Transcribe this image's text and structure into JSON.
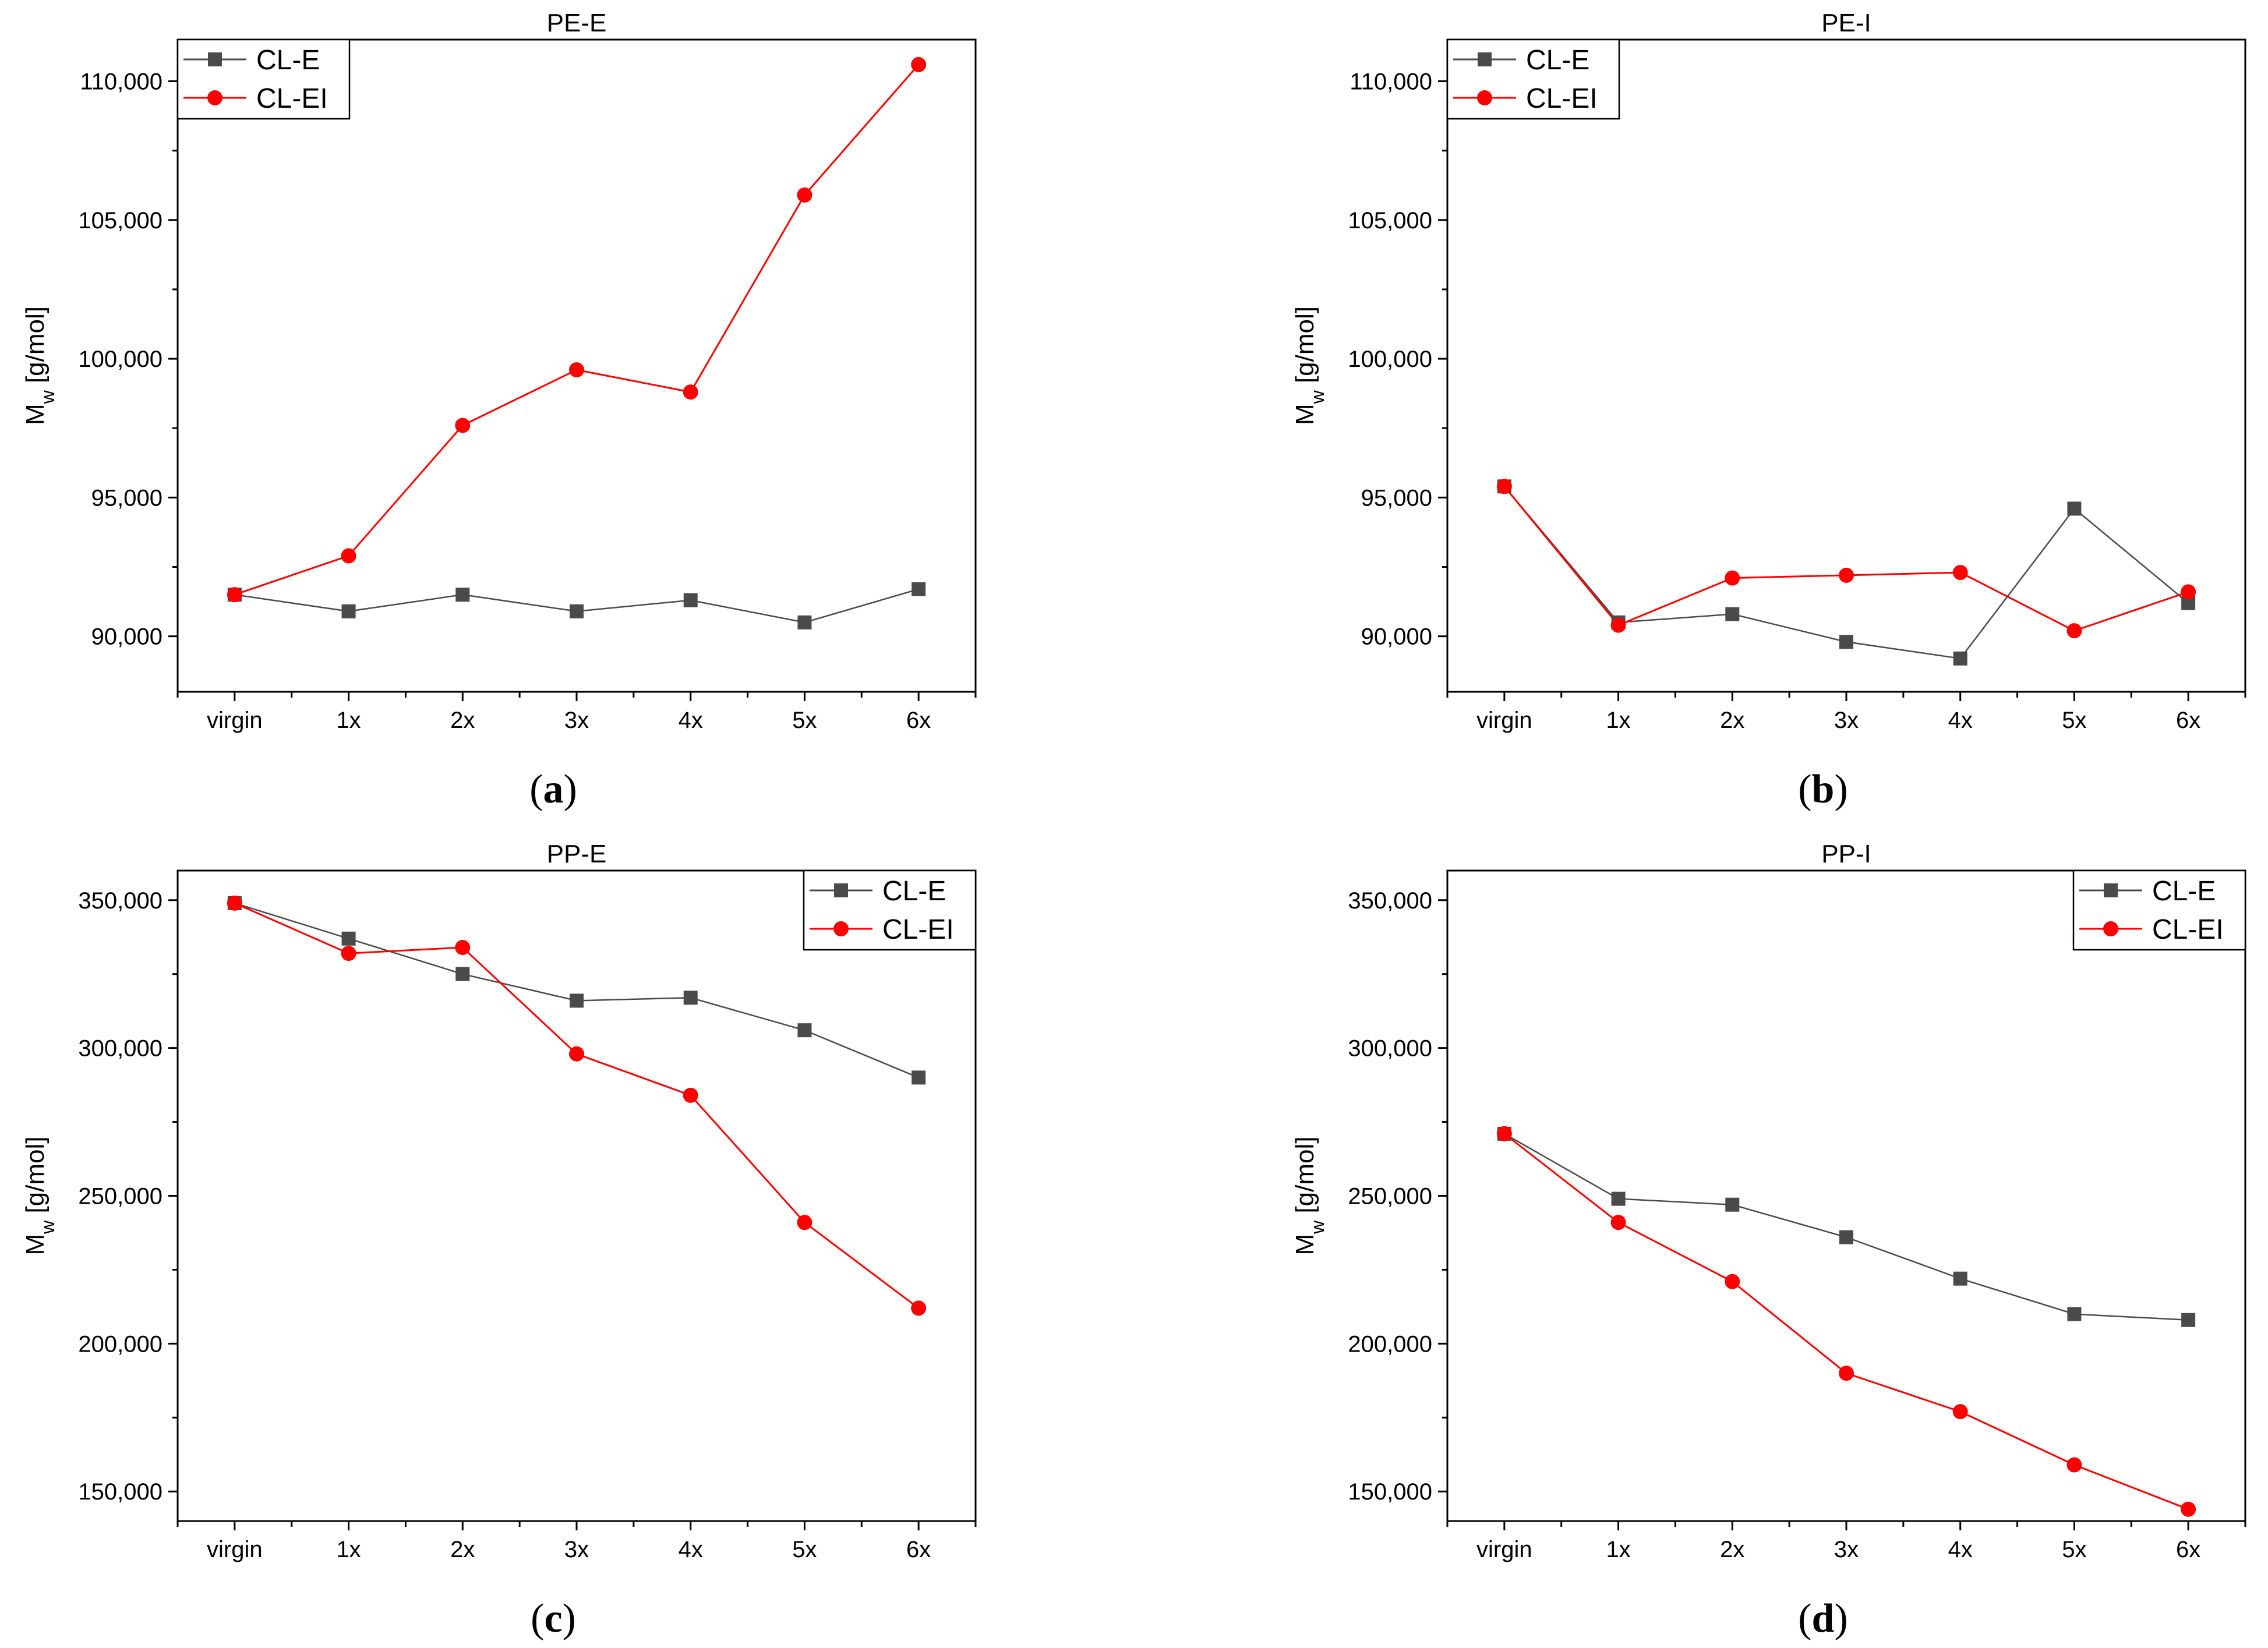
{
  "chart_data": [
    {
      "type": "line",
      "id": "a",
      "title": "PE-E",
      "caption": "a",
      "xlabel": "",
      "ylabel": "M",
      "ylabel_sub": "w",
      "ylabel_unit": " [g/mol]",
      "categories": [
        "virgin",
        "1x",
        "2x",
        "3x",
        "4x",
        "5x",
        "6x"
      ],
      "ylim": [
        88000,
        111500
      ],
      "yticks": [
        90000,
        95000,
        100000,
        105000,
        110000
      ],
      "ytick_labels": [
        "90,000",
        "95,000",
        "100,000",
        "105,000",
        "110,000"
      ],
      "legend_position": "top-left",
      "series": [
        {
          "name": "CL-E",
          "color": "#4a4a4a",
          "marker": "square",
          "values": [
            91500,
            90900,
            91500,
            90900,
            91300,
            90500,
            91700
          ]
        },
        {
          "name": "CL-EI",
          "color": "#ff0000",
          "marker": "circle",
          "values": [
            91500,
            92900,
            97600,
            99600,
            98800,
            105900,
            110600
          ]
        }
      ]
    },
    {
      "type": "line",
      "id": "b",
      "title": "PE-I",
      "caption": "b",
      "xlabel": "",
      "ylabel": "M",
      "ylabel_sub": "w",
      "ylabel_unit": " [g/mol]",
      "categories": [
        "virgin",
        "1x",
        "2x",
        "3x",
        "4x",
        "5x",
        "6x"
      ],
      "ylim": [
        88000,
        111500
      ],
      "yticks": [
        90000,
        95000,
        100000,
        105000,
        110000
      ],
      "ytick_labels": [
        "90,000",
        "95,000",
        "100,000",
        "105,000",
        "110,000"
      ],
      "legend_position": "top-left",
      "series": [
        {
          "name": "CL-E",
          "color": "#4a4a4a",
          "marker": "square",
          "values": [
            95400,
            90500,
            90800,
            89800,
            89200,
            94600,
            91200
          ]
        },
        {
          "name": "CL-EI",
          "color": "#ff0000",
          "marker": "circle",
          "values": [
            95400,
            90400,
            92100,
            92200,
            92300,
            90200,
            91600
          ]
        }
      ]
    },
    {
      "type": "line",
      "id": "c",
      "title": "PP-E",
      "caption": "c",
      "xlabel": "",
      "ylabel": "M",
      "ylabel_sub": "w",
      "ylabel_unit": " [g/mol]",
      "categories": [
        "virgin",
        "1x",
        "2x",
        "3x",
        "4x",
        "5x",
        "6x"
      ],
      "ylim": [
        140000,
        360000
      ],
      "yticks": [
        150000,
        200000,
        250000,
        300000,
        350000
      ],
      "ytick_labels": [
        "150,000",
        "200,000",
        "250,000",
        "300,000",
        "350,000"
      ],
      "legend_position": "top-right",
      "series": [
        {
          "name": "CL-E",
          "color": "#4a4a4a",
          "marker": "square",
          "values": [
            349000,
            337000,
            325000,
            316000,
            317000,
            306000,
            290000
          ]
        },
        {
          "name": "CL-EI",
          "color": "#ff0000",
          "marker": "circle",
          "values": [
            349000,
            332000,
            334000,
            298000,
            284000,
            241000,
            212000
          ]
        }
      ]
    },
    {
      "type": "line",
      "id": "d",
      "title": "PP-I",
      "caption": "d",
      "xlabel": "",
      "ylabel": "M",
      "ylabel_sub": "w",
      "ylabel_unit": " [g/mol]",
      "categories": [
        "virgin",
        "1x",
        "2x",
        "3x",
        "4x",
        "5x",
        "6x"
      ],
      "ylim": [
        140000,
        360000
      ],
      "yticks": [
        150000,
        200000,
        250000,
        300000,
        350000
      ],
      "ytick_labels": [
        "150,000",
        "200,000",
        "250,000",
        "300,000",
        "350,000"
      ],
      "legend_position": "top-right",
      "series": [
        {
          "name": "CL-E",
          "color": "#4a4a4a",
          "marker": "square",
          "values": [
            271000,
            249000,
            247000,
            236000,
            222000,
            210000,
            208000
          ]
        },
        {
          "name": "CL-EI",
          "color": "#ff0000",
          "marker": "circle",
          "values": [
            271000,
            241000,
            221000,
            190000,
            177000,
            159000,
            144000
          ]
        }
      ]
    }
  ]
}
